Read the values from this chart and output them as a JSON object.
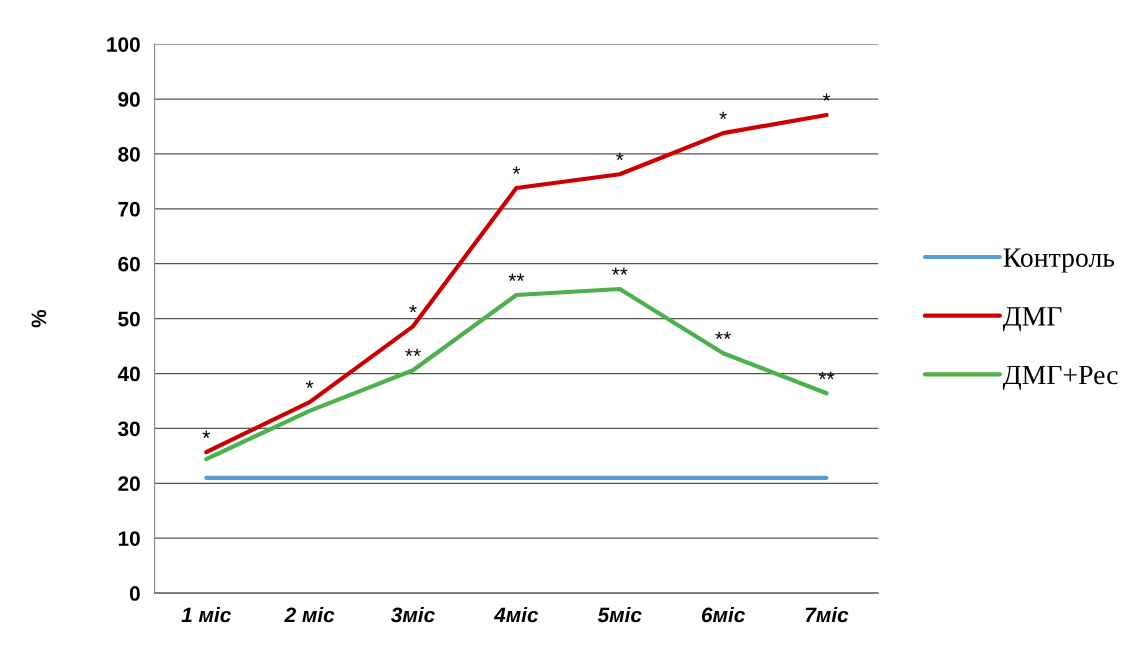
{
  "chart_data": {
    "type": "line",
    "ylabel": "%",
    "categories": [
      "1 міс",
      "2 міс",
      "3міс",
      "4міс",
      "5міс",
      "6міс",
      "7міс"
    ],
    "series": [
      {
        "name": "Контроль",
        "color": "#5b9bd5",
        "values": [
          21,
          21,
          21,
          21,
          21,
          21,
          21
        ]
      },
      {
        "name": "ДМГ",
        "color": "#cc0000",
        "values": [
          25.7,
          34.8,
          48.6,
          73.8,
          76.3,
          83.8,
          87.1
        ]
      },
      {
        "name": "ДМГ+Рес",
        "color": "#4cb04c",
        "values": [
          24.4,
          33.2,
          40.6,
          54.3,
          55.4,
          43.7,
          36.4
        ]
      }
    ],
    "ylim": [
      0,
      100
    ],
    "yticks": [
      0,
      10,
      20,
      30,
      40,
      50,
      60,
      70,
      80,
      90,
      100
    ],
    "grid": "y",
    "legend": "right",
    "marker": "none",
    "line_style": "solid",
    "annotations": [
      {
        "text": "*",
        "x": "1 міс",
        "y": 25.7
      },
      {
        "text": "*",
        "x": "2 міс",
        "y": 34.8
      },
      {
        "text": "*",
        "x": "3міс",
        "y": 48.6
      },
      {
        "text": "*",
        "x": "4міс",
        "y": 73.8
      },
      {
        "text": "*",
        "x": "5міс",
        "y": 76.3
      },
      {
        "text": "*",
        "x": "6міс",
        "y": 83.8
      },
      {
        "text": "*",
        "x": "7міс",
        "y": 87.1
      },
      {
        "text": "**",
        "x": "3міс",
        "y": 40.6
      },
      {
        "text": "**",
        "x": "4міс",
        "y": 54.3
      },
      {
        "text": "**",
        "x": "5міс",
        "y": 55.4
      },
      {
        "text": "**",
        "x": "6міс",
        "y": 43.7
      },
      {
        "text": "**",
        "x": "7міс",
        "y": 36.4
      }
    ]
  }
}
